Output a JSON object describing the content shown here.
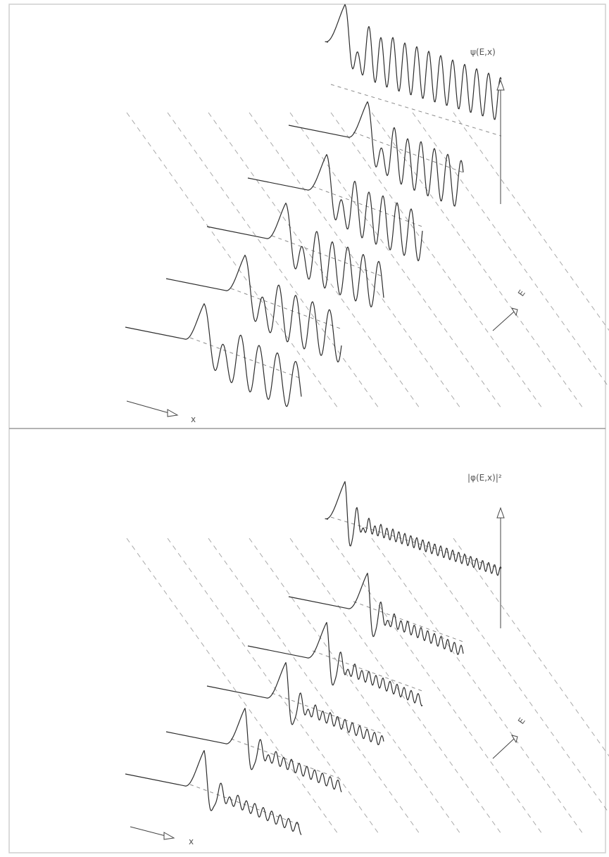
{
  "panels": [
    {
      "id": "psi",
      "axis_label": "ψ(E,x)",
      "e_label": "E",
      "x_label": "x",
      "quantity": "wavefunction",
      "curve_count": 6
    },
    {
      "id": "psi-squared",
      "axis_label": "|φ(E,x)|²",
      "e_label": "E",
      "x_label": "x",
      "quantity": "probability-density",
      "curve_count": 6
    }
  ],
  "colors": {
    "curve": "#2d2d2d",
    "guide": "#8c8c8c",
    "background": "#ffffff"
  }
}
